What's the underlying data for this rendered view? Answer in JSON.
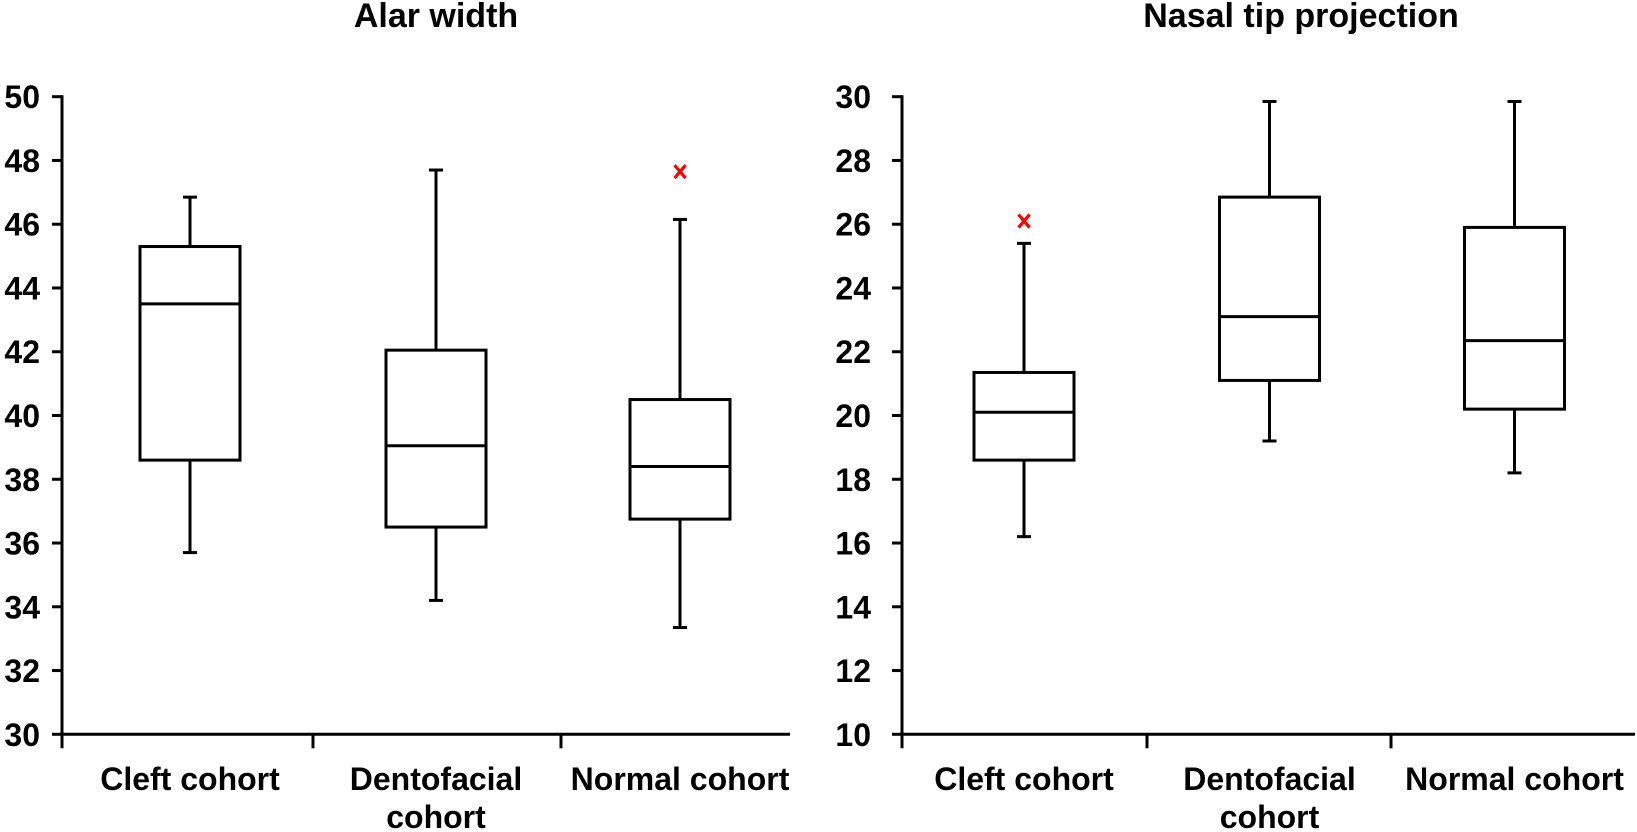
{
  "figure_title": "",
  "colors": {
    "line": "#000000",
    "box_fill": "#ffffff",
    "outlier_marker": "#ff0000",
    "text": "#000000",
    "background": "#ffffff"
  },
  "chart_data": [
    {
      "type": "box",
      "title": "Alar width",
      "categories": [
        "Cleft cohort",
        "Dentofacial cohort",
        "Normal cohort"
      ],
      "xlabel": "",
      "ylabel": "",
      "ylim": [
        30,
        50
      ],
      "yticks": [
        30,
        32,
        34,
        36,
        38,
        40,
        42,
        44,
        46,
        48,
        50
      ],
      "grid": false,
      "legend": "none",
      "outlier_marker_symbol": "x",
      "series": [
        {
          "category": "Cleft cohort",
          "whisker_low": 35.7,
          "q1": 38.6,
          "median": 43.5,
          "q3": 45.3,
          "whisker_high": 46.85,
          "outliers": []
        },
        {
          "category": "Dentofacial cohort",
          "whisker_low": 34.2,
          "q1": 36.5,
          "median": 39.05,
          "q3": 42.05,
          "whisker_high": 47.7,
          "outliers": []
        },
        {
          "category": "Normal cohort",
          "whisker_low": 33.35,
          "q1": 36.75,
          "median": 38.4,
          "q3": 40.5,
          "whisker_high": 46.15,
          "outliers": [
            47.65
          ]
        }
      ]
    },
    {
      "type": "box",
      "title": "Nasal tip projection",
      "categories": [
        "Cleft cohort",
        "Dentofacial cohort",
        "Normal cohort"
      ],
      "xlabel": "",
      "ylabel": "",
      "ylim": [
        10,
        30
      ],
      "yticks": [
        10,
        12,
        14,
        16,
        18,
        20,
        22,
        24,
        26,
        28,
        30
      ],
      "grid": false,
      "legend": "none",
      "outlier_marker_symbol": "x",
      "series": [
        {
          "category": "Cleft cohort",
          "whisker_low": 16.2,
          "q1": 18.6,
          "median": 20.1,
          "q3": 21.35,
          "whisker_high": 25.4,
          "outliers": [
            26.1
          ]
        },
        {
          "category": "Dentofacial cohort",
          "whisker_low": 19.2,
          "q1": 21.1,
          "median": 23.1,
          "q3": 26.85,
          "whisker_high": 29.85,
          "outliers": []
        },
        {
          "category": "Normal cohort",
          "whisker_low": 18.2,
          "q1": 20.2,
          "median": 22.35,
          "q3": 25.9,
          "whisker_high": 29.85,
          "outliers": []
        }
      ]
    }
  ]
}
